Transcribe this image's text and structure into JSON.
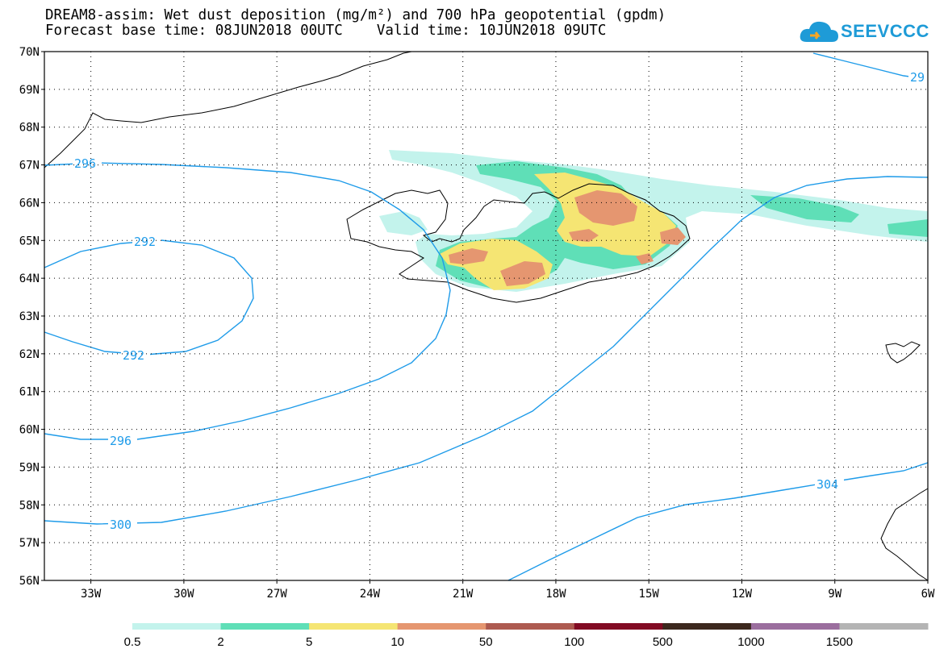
{
  "header": {
    "title_line1": "DREAM8-assim: Wet dust deposition (mg/m²) and 700 hPa geopotential (gpdm)",
    "title_line2": "Forecast base time: 08JUN2018 00UTC    Valid time: 10JUN2018 09UTC"
  },
  "logo": {
    "text": "SEEVCCC",
    "icon": "cloud-icon",
    "color": "#1e9bd7"
  },
  "map": {
    "lat_labels": [
      "70N",
      "69N",
      "68N",
      "67N",
      "66N",
      "65N",
      "64N",
      "63N",
      "62N",
      "61N",
      "60N",
      "59N",
      "58N",
      "57N",
      "56N"
    ],
    "lon_labels": [
      "33W",
      "30W",
      "27W",
      "24W",
      "21W",
      "18W",
      "15W",
      "12W",
      "9W",
      "6W"
    ],
    "lat_range": [
      56,
      70
    ],
    "lon_range": [
      -34.5,
      -6
    ],
    "grid": "dotted",
    "contour_color": "#1e9be9",
    "contour_labels": [
      "296",
      "292",
      "292",
      "296",
      "300",
      "304",
      "29"
    ]
  },
  "colorbar": {
    "labels": [
      "0.5",
      "2",
      "5",
      "10",
      "50",
      "100",
      "500",
      "1000",
      "1500"
    ],
    "colors": [
      "#c3f3ec",
      "#5fdfb7",
      "#f5e573",
      "#e59670",
      "#ad5a50",
      "#820a23",
      "#3c281e",
      "#9b6e9e",
      "#b4b4b4"
    ]
  }
}
